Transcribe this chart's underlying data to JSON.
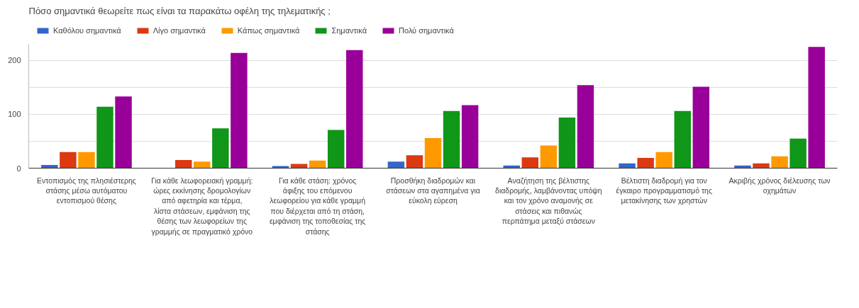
{
  "chart_data": {
    "type": "bar",
    "title": "Πόσο σημαντικά θεωρείτε πως είναι τα παρακάτω οφέλη της τηλεματικής ;",
    "categories": [
      "Εντοπισμός της πλησιέστερης στάσης μέσω αυτόματου εντοπισμού θέσης",
      "Για κάθε λεωφορειακή γραμμή: ώρες εκκίνησης δρομολογίων από αφετηρία και τέρμα, λίστα στάσεων, εμφάνιση της θέσης των λεωφορείων της γραμμής σε πραγματικό χρόνο",
      "Για κάθε στάση: χρόνος άφιξης του επόμενου λεωφορείου για κάθε γραμμή που διέρχεται από τη στάση, εμφάνιση της τοποθεσίας της στάσης",
      "Προσθήκη διαδρομών και στάσεων στα αγαπημένα για εύκολη εύρεση",
      "Αναζήτηση της βέλτιστης διαδρομής, λαμβάνοντας υπόψη και τον χρόνο αναμονής σε στάσεις και πιθανώς περπάτημα μεταξύ στάσεων",
      "Βέλτιστη διαδρομή για τον έγκαιρο προγραμματισμό της μετακίνησης των χρηστών",
      "Ακριβής χρόνος διέλευσης των οχημάτων"
    ],
    "series": [
      {
        "name": "Καθόλου σημαντικά",
        "color": "#3366cc",
        "values": [
          6,
          null,
          4,
          12,
          5,
          9,
          5
        ]
      },
      {
        "name": "Λίγο σημαντικά",
        "color": "#dc3912",
        "values": [
          30,
          15,
          8,
          24,
          20,
          19,
          9
        ]
      },
      {
        "name": "Κάπως σημαντικά",
        "color": "#ff9900",
        "values": [
          30,
          12,
          14,
          56,
          42,
          30,
          22
        ]
      },
      {
        "name": "Σημαντικά",
        "color": "#109618",
        "values": [
          114,
          74,
          71,
          106,
          94,
          106,
          55
        ]
      },
      {
        "name": "Πολύ σημαντικά",
        "color": "#990099",
        "values": [
          133,
          214,
          219,
          117,
          154,
          151,
          225
        ]
      }
    ],
    "ylim": [
      0,
      230
    ],
    "yticks": [
      0,
      {
        "value": 50,
        "label": null
      },
      100,
      {
        "value": 150,
        "label": null
      },
      200
    ],
    "grid": "y",
    "legend": "top left"
  }
}
